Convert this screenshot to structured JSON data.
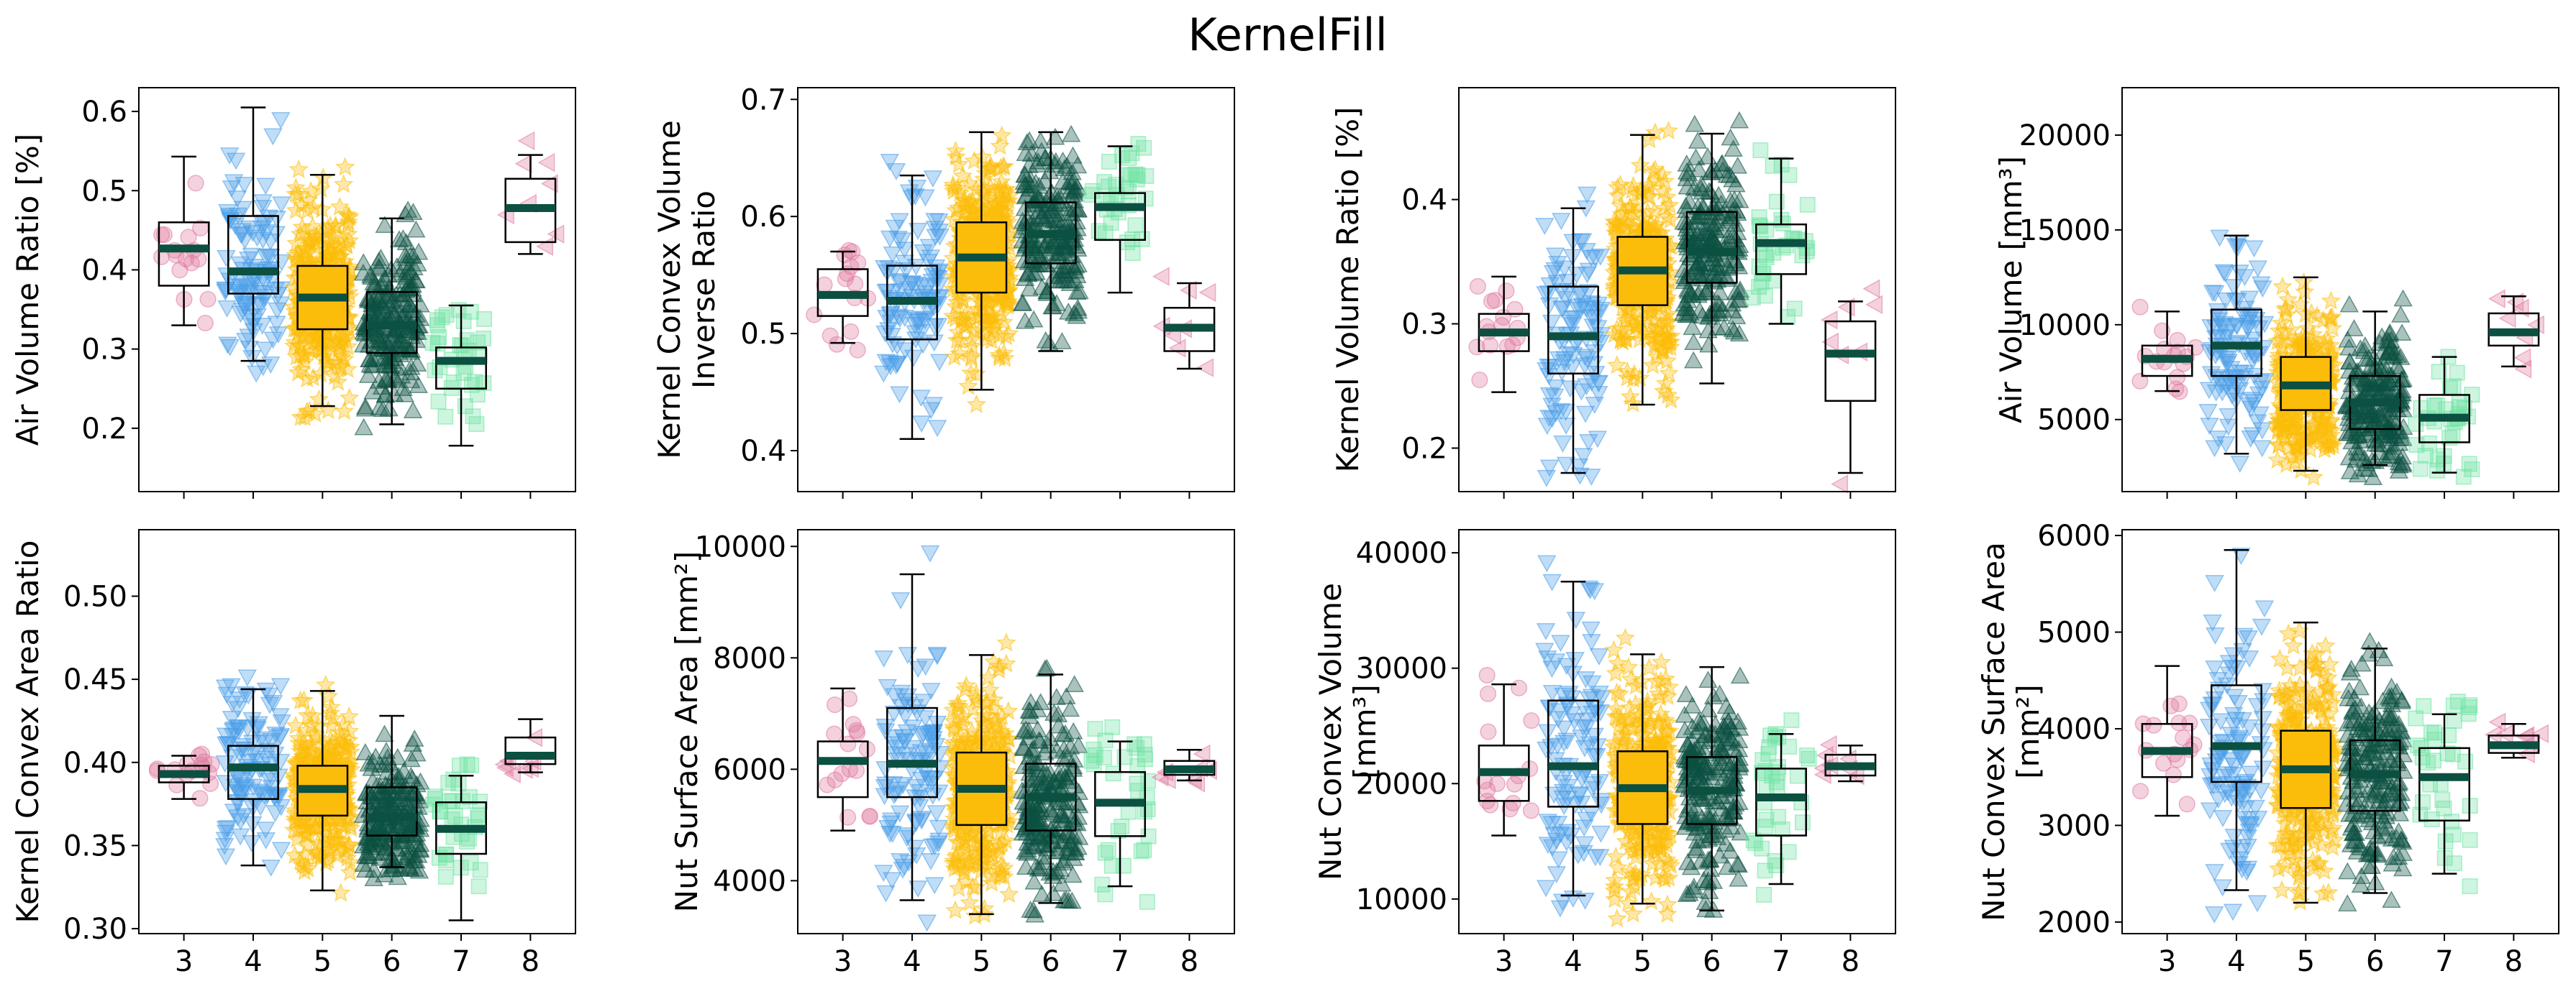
{
  "title": "KernelFill",
  "colors": {
    "3": "#e07aa0",
    "4": "#4a9ee8",
    "5": "#fbbd0a",
    "6": "#0b5041",
    "7": "#6fe3a4",
    "8": "#e07aa0",
    "median": "#0b5041"
  },
  "chart_data": [
    {
      "type": "box",
      "ylabel": [
        "Air Volume Ratio [%]"
      ],
      "categories": [
        "3",
        "4",
        "5",
        "6",
        "7",
        "8"
      ],
      "ylim": [
        0.12,
        0.63
      ],
      "yticks": [
        0.2,
        0.3,
        0.4,
        0.5,
        0.6
      ],
      "tick_labels": [
        "0.2",
        "0.3",
        "0.4",
        "0.5",
        "0.6"
      ],
      "show_xticklabels": false,
      "boxes": [
        {
          "whislo": 0.33,
          "q1": 0.38,
          "med": 0.427,
          "q3": 0.46,
          "whishi": 0.543
        },
        {
          "whislo": 0.285,
          "q1": 0.37,
          "med": 0.398,
          "q3": 0.468,
          "whishi": 0.605
        },
        {
          "whislo": 0.228,
          "q1": 0.325,
          "med": 0.365,
          "q3": 0.405,
          "whishi": 0.52
        },
        {
          "whislo": 0.205,
          "q1": 0.295,
          "med": 0.33,
          "q3": 0.372,
          "whishi": 0.465
        },
        {
          "whislo": 0.178,
          "q1": 0.25,
          "med": 0.285,
          "q3": 0.302,
          "whishi": 0.355
        },
        {
          "whislo": 0.42,
          "q1": 0.435,
          "med": 0.478,
          "q3": 0.515,
          "whishi": 0.545
        }
      ],
      "counts": [
        16,
        110,
        300,
        210,
        35,
        8
      ]
    },
    {
      "type": "box",
      "ylabel": [
        "Kernel Convex Volume",
        "Inverse Ratio"
      ],
      "categories": [
        "3",
        "4",
        "5",
        "6",
        "7",
        "8"
      ],
      "ylim": [
        0.365,
        0.71
      ],
      "yticks": [
        0.4,
        0.5,
        0.6,
        0.7
      ],
      "tick_labels": [
        "0.4",
        "0.5",
        "0.6",
        "0.7"
      ],
      "show_xticklabels": false,
      "boxes": [
        {
          "whislo": 0.492,
          "q1": 0.515,
          "med": 0.533,
          "q3": 0.555,
          "whishi": 0.57
        },
        {
          "whislo": 0.41,
          "q1": 0.495,
          "med": 0.528,
          "q3": 0.558,
          "whishi": 0.635
        },
        {
          "whislo": 0.452,
          "q1": 0.535,
          "med": 0.565,
          "q3": 0.595,
          "whishi": 0.672
        },
        {
          "whislo": 0.485,
          "q1": 0.56,
          "med": 0.585,
          "q3": 0.612,
          "whishi": 0.672
        },
        {
          "whislo": 0.535,
          "q1": 0.58,
          "med": 0.608,
          "q3": 0.62,
          "whishi": 0.66
        },
        {
          "whislo": 0.47,
          "q1": 0.485,
          "med": 0.505,
          "q3": 0.522,
          "whishi": 0.543
        }
      ],
      "counts": [
        16,
        110,
        300,
        210,
        35,
        8
      ]
    },
    {
      "type": "box",
      "ylabel": [
        "Kernel Volume Ratio [%]"
      ],
      "categories": [
        "3",
        "4",
        "5",
        "6",
        "7",
        "8"
      ],
      "ylim": [
        0.165,
        0.49
      ],
      "yticks": [
        0.2,
        0.3,
        0.4
      ],
      "tick_labels": [
        "0.2",
        "0.3",
        "0.4"
      ],
      "show_xticklabels": false,
      "boxes": [
        {
          "whislo": 0.245,
          "q1": 0.278,
          "med": 0.293,
          "q3": 0.308,
          "whishi": 0.338
        },
        {
          "whislo": 0.18,
          "q1": 0.26,
          "med": 0.29,
          "q3": 0.33,
          "whishi": 0.393
        },
        {
          "whislo": 0.235,
          "q1": 0.315,
          "med": 0.343,
          "q3": 0.37,
          "whishi": 0.452
        },
        {
          "whislo": 0.252,
          "q1": 0.333,
          "med": 0.358,
          "q3": 0.39,
          "whishi": 0.453
        },
        {
          "whislo": 0.3,
          "q1": 0.34,
          "med": 0.365,
          "q3": 0.38,
          "whishi": 0.433
        },
        {
          "whislo": 0.18,
          "q1": 0.238,
          "med": 0.276,
          "q3": 0.302,
          "whishi": 0.318
        }
      ],
      "counts": [
        16,
        110,
        300,
        210,
        35,
        8
      ]
    },
    {
      "type": "box",
      "ylabel": [
        "Air Volume [mm³]"
      ],
      "categories": [
        "3",
        "4",
        "5",
        "6",
        "7",
        "8"
      ],
      "ylim": [
        1200,
        22500
      ],
      "yticks": [
        5000,
        10000,
        15000,
        20000
      ],
      "tick_labels": [
        "5000",
        "10000",
        "15000",
        "20000"
      ],
      "show_xticklabels": false,
      "boxes": [
        {
          "whislo": 6500,
          "q1": 7300,
          "med": 8200,
          "q3": 8900,
          "whishi": 10700
        },
        {
          "whislo": 3200,
          "q1": 7300,
          "med": 8900,
          "q3": 10800,
          "whishi": 14700
        },
        {
          "whislo": 2300,
          "q1": 5500,
          "med": 6800,
          "q3": 8300,
          "whishi": 12500
        },
        {
          "whislo": 2600,
          "q1": 4500,
          "med": 5900,
          "q3": 7300,
          "whishi": 10700
        },
        {
          "whislo": 2200,
          "q1": 3800,
          "med": 5100,
          "q3": 6300,
          "whishi": 8300
        },
        {
          "whislo": 7800,
          "q1": 8900,
          "med": 9600,
          "q3": 10600,
          "whishi": 11500
        }
      ],
      "counts": [
        16,
        110,
        300,
        210,
        35,
        8
      ]
    },
    {
      "type": "box",
      "ylabel": [
        "Kernel Convex Area Ratio"
      ],
      "categories": [
        "3",
        "4",
        "5",
        "6",
        "7",
        "8"
      ],
      "ylim": [
        0.297,
        0.54
      ],
      "yticks": [
        0.3,
        0.35,
        0.4,
        0.45,
        0.5
      ],
      "tick_labels": [
        "0.30",
        "0.35",
        "0.40",
        "0.45",
        "0.50"
      ],
      "show_xticklabels": true,
      "boxes": [
        {
          "whislo": 0.378,
          "q1": 0.388,
          "med": 0.393,
          "q3": 0.398,
          "whishi": 0.404
        },
        {
          "whislo": 0.338,
          "q1": 0.378,
          "med": 0.397,
          "q3": 0.41,
          "whishi": 0.444
        },
        {
          "whislo": 0.323,
          "q1": 0.368,
          "med": 0.384,
          "q3": 0.398,
          "whishi": 0.443
        },
        {
          "whislo": 0.337,
          "q1": 0.356,
          "med": 0.367,
          "q3": 0.385,
          "whishi": 0.428
        },
        {
          "whislo": 0.305,
          "q1": 0.345,
          "med": 0.36,
          "q3": 0.376,
          "whishi": 0.392
        },
        {
          "whislo": 0.394,
          "q1": 0.399,
          "med": 0.404,
          "q3": 0.415,
          "whishi": 0.426
        }
      ],
      "counts": [
        16,
        110,
        300,
        210,
        35,
        8
      ]
    },
    {
      "type": "box",
      "ylabel": [
        "Nut Surface Area [mm²]"
      ],
      "categories": [
        "3",
        "4",
        "5",
        "6",
        "7",
        "8"
      ],
      "ylim": [
        3050,
        10300
      ],
      "yticks": [
        4000,
        6000,
        8000,
        10000
      ],
      "tick_labels": [
        "4000",
        "6000",
        "8000",
        "10000"
      ],
      "show_xticklabels": true,
      "boxes": [
        {
          "whislo": 4900,
          "q1": 5500,
          "med": 6150,
          "q3": 6500,
          "whishi": 7450
        },
        {
          "whislo": 3650,
          "q1": 5500,
          "med": 6100,
          "q3": 7100,
          "whishi": 9500
        },
        {
          "whislo": 3400,
          "q1": 5000,
          "med": 5650,
          "q3": 6300,
          "whishi": 8050
        },
        {
          "whislo": 3600,
          "q1": 4900,
          "med": 5500,
          "q3": 6100,
          "whishi": 7700
        },
        {
          "whislo": 3900,
          "q1": 4800,
          "med": 5400,
          "q3": 5950,
          "whishi": 6500
        },
        {
          "whislo": 5800,
          "q1": 5900,
          "med": 6000,
          "q3": 6150,
          "whishi": 6350
        }
      ],
      "counts": [
        16,
        110,
        300,
        210,
        35,
        8
      ]
    },
    {
      "type": "box",
      "ylabel": [
        "Nut Convex Volume",
        "[mm³]"
      ],
      "categories": [
        "3",
        "4",
        "5",
        "6",
        "7",
        "8"
      ],
      "ylim": [
        7000,
        42000
      ],
      "yticks": [
        10000,
        20000,
        30000,
        40000
      ],
      "tick_labels": [
        "10000",
        "20000",
        "30000",
        "40000"
      ],
      "show_xticklabels": true,
      "boxes": [
        {
          "whislo": 15500,
          "q1": 18500,
          "med": 21000,
          "q3": 23300,
          "whishi": 28600
        },
        {
          "whislo": 10300,
          "q1": 18000,
          "med": 21500,
          "q3": 27200,
          "whishi": 37500
        },
        {
          "whislo": 9600,
          "q1": 16500,
          "med": 19600,
          "q3": 22800,
          "whishi": 31200
        },
        {
          "whislo": 9000,
          "q1": 16500,
          "med": 19400,
          "q3": 22300,
          "whishi": 30100
        },
        {
          "whislo": 11300,
          "q1": 15500,
          "med": 18800,
          "q3": 21300,
          "whishi": 24300
        },
        {
          "whislo": 20200,
          "q1": 20700,
          "med": 21500,
          "q3": 22500,
          "whishi": 23300
        }
      ],
      "counts": [
        16,
        110,
        300,
        210,
        35,
        8
      ]
    },
    {
      "type": "box",
      "ylabel": [
        "Nut Convex Surface Area",
        "[mm²]"
      ],
      "categories": [
        "3",
        "4",
        "5",
        "6",
        "7",
        "8"
      ],
      "ylim": [
        1880,
        6060
      ],
      "yticks": [
        2000,
        3000,
        4000,
        5000,
        6000
      ],
      "tick_labels": [
        "2000",
        "3000",
        "4000",
        "5000",
        "6000"
      ],
      "show_xticklabels": true,
      "boxes": [
        {
          "whislo": 3100,
          "q1": 3500,
          "med": 3770,
          "q3": 4050,
          "whishi": 4650
        },
        {
          "whislo": 2330,
          "q1": 3450,
          "med": 3820,
          "q3": 4450,
          "whishi": 5850
        },
        {
          "whislo": 2200,
          "q1": 3180,
          "med": 3580,
          "q3": 3980,
          "whishi": 5100
        },
        {
          "whislo": 2300,
          "q1": 3150,
          "med": 3530,
          "q3": 3880,
          "whishi": 4830
        },
        {
          "whislo": 2500,
          "q1": 3050,
          "med": 3500,
          "q3": 3800,
          "whishi": 4150
        },
        {
          "whislo": 3700,
          "q1": 3750,
          "med": 3830,
          "q3": 3930,
          "whishi": 4050
        }
      ],
      "counts": [
        16,
        110,
        300,
        210,
        35,
        8
      ]
    }
  ]
}
